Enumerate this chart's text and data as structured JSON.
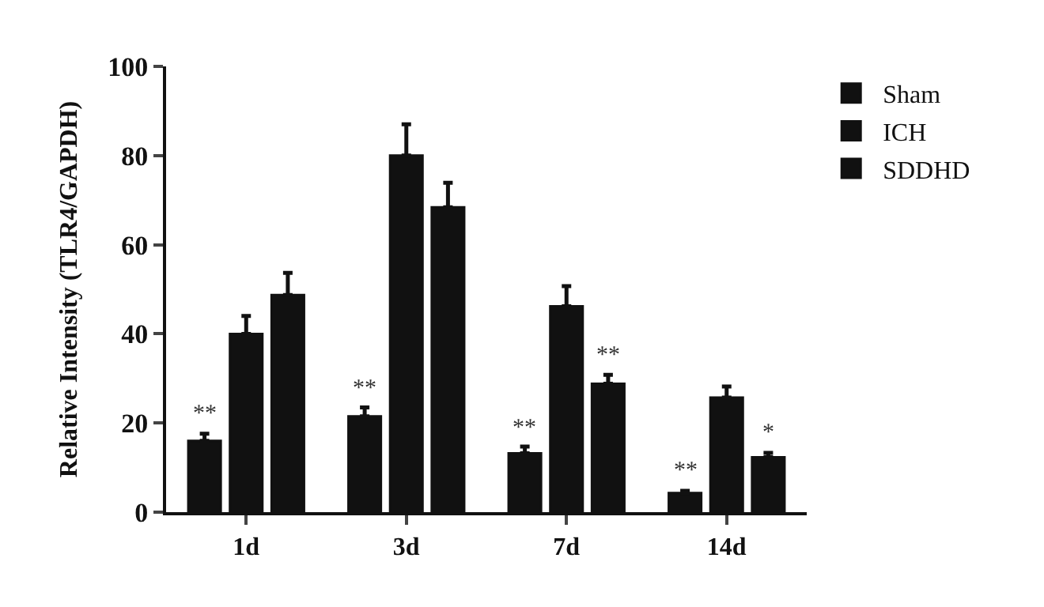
{
  "chart_data": {
    "type": "bar",
    "ylabel": "Relative Intensity (TLR4/GAPDH)",
    "categories": [
      "1d",
      "3d",
      "7d",
      "14d"
    ],
    "series": [
      {
        "name": "Sham",
        "color": "#111111",
        "values": [
          16,
          21.5,
          13.2,
          4.3
        ],
        "errors": [
          1.6,
          2,
          1.5,
          0.5
        ],
        "value_labels": [
          "**",
          "**",
          "**",
          "**"
        ]
      },
      {
        "name": "ICH",
        "color": "#111111",
        "values": [
          40,
          80,
          46.2,
          25.7
        ],
        "errors": [
          4,
          7,
          4.5,
          2.5
        ],
        "value_labels": [
          null,
          null,
          null,
          null
        ]
      },
      {
        "name": "SDDHD",
        "color": "#111111",
        "values": [
          48.7,
          68.4,
          28.8,
          12.3
        ],
        "errors": [
          5,
          5.5,
          2,
          1
        ],
        "value_labels": [
          null,
          null,
          "**",
          "*"
        ]
      }
    ],
    "ylim": [
      0,
      100
    ],
    "yticks": [
      0,
      20,
      40,
      60,
      80,
      100
    ],
    "legend": "top right"
  }
}
